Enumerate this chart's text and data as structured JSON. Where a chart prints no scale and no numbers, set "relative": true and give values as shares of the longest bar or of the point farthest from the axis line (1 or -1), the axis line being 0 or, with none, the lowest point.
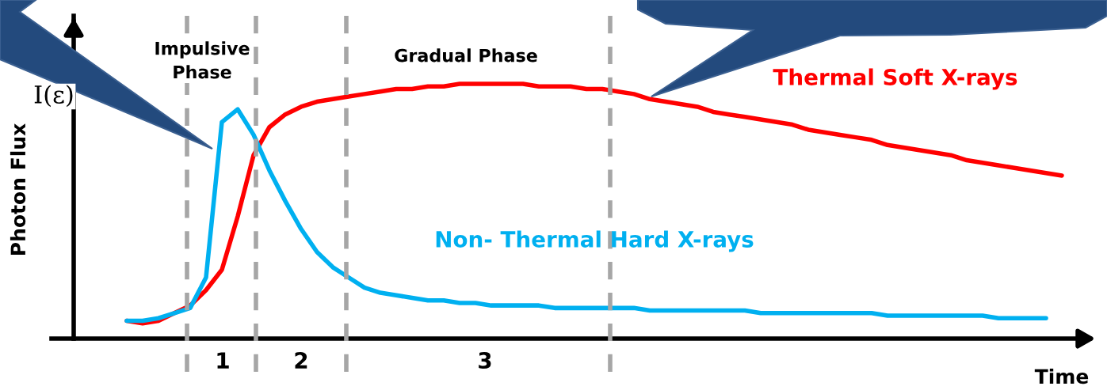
{
  "chart_data": {
    "type": "line",
    "relative": true,
    "xlabel": "Time",
    "ylabel": "Photon Flux",
    "categories": [
      null,
      null,
      null,
      null,
      null,
      null,
      null,
      null,
      null,
      null,
      null,
      null,
      null,
      null,
      null,
      null,
      null,
      null,
      null,
      null,
      null,
      null,
      null,
      null,
      null,
      null,
      null,
      null,
      null,
      null,
      null,
      null,
      null,
      null,
      null,
      null,
      null,
      null,
      null,
      null,
      null,
      null,
      null,
      null,
      null,
      null,
      null,
      null,
      null,
      null,
      null,
      null,
      null,
      null,
      null,
      null,
      null,
      null,
      null,
      null
    ],
    "series": [
      {
        "name": "Thermal Soft X-rays",
        "color": "#ff0000",
        "values": [
          0.07,
          0.06,
          0.07,
          0.1,
          0.13,
          0.19,
          0.27,
          0.48,
          0.72,
          0.83,
          0.88,
          0.91,
          0.93,
          0.94,
          0.95,
          0.96,
          0.97,
          0.98,
          0.98,
          0.99,
          0.99,
          1.0,
          1.0,
          1.0,
          1.0,
          1.0,
          0.99,
          0.99,
          0.99,
          0.98,
          0.98,
          0.97,
          0.96,
          0.94,
          0.93,
          0.92,
          0.91,
          0.89,
          0.88,
          0.87,
          0.86,
          0.85,
          0.84,
          0.82,
          0.81,
          0.8,
          0.79,
          0.78,
          0.76,
          0.75,
          0.74,
          0.73,
          0.72,
          0.7,
          0.69,
          0.68,
          0.67,
          0.66,
          0.65,
          0.64
        ]
      },
      {
        "name": "Non- Thermal Hard X-rays",
        "color": "#00b0f0",
        "values": [
          0.07,
          0.07,
          0.08,
          0.1,
          0.12,
          0.24,
          0.85,
          0.9,
          0.8,
          0.66,
          0.54,
          0.43,
          0.34,
          0.28,
          0.24,
          0.2,
          0.18,
          0.17,
          0.16,
          0.15,
          0.15,
          0.14,
          0.14,
          0.13,
          0.13,
          0.13,
          0.13,
          0.12,
          0.12,
          0.12,
          0.12,
          0.12,
          0.12,
          0.11,
          0.11,
          0.11,
          0.11,
          0.11,
          0.11,
          0.11,
          0.1,
          0.1,
          0.1,
          0.1,
          0.1,
          0.1,
          0.1,
          0.1,
          0.09,
          0.09,
          0.09,
          0.09,
          0.09,
          0.09,
          0.09,
          0.08,
          0.08,
          0.08,
          0.08,
          null
        ]
      }
    ],
    "annotations": [
      "Impulsive\nPhase",
      "Gradual Phase",
      "1",
      "2",
      "3",
      "I(ε)"
    ],
    "grid": "x",
    "legend": false
  }
}
